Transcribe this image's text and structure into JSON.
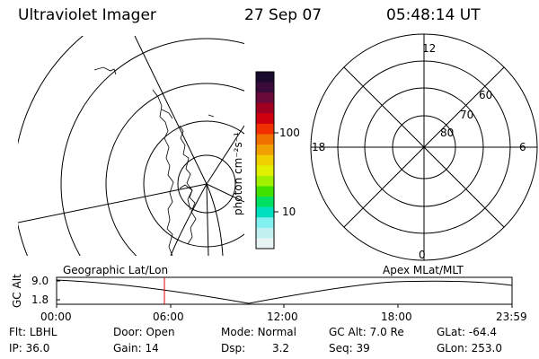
{
  "header": {
    "instrument": "Ultraviolet Imager",
    "date": "27 Sep 07",
    "time": "05:48:14 UT"
  },
  "colorbar": {
    "label": "photon cm⁻²s⁻¹",
    "ticks": [
      "100",
      "10"
    ],
    "colors": [
      "#1a0a2e",
      "#3a0a3a",
      "#6a0a3a",
      "#a00020",
      "#d00010",
      "#f03000",
      "#f07000",
      "#f0a000",
      "#f0d000",
      "#e0f000",
      "#a0f000",
      "#40e000",
      "#00e060",
      "#00e0c0",
      "#80f0f0",
      "#c0f0f0",
      "#e8f4f4"
    ]
  },
  "polar_plot": {
    "mlt_labels": [
      "12",
      "18",
      "6",
      "0"
    ],
    "lat_labels": [
      "60",
      "70",
      "80"
    ]
  },
  "timeline": {
    "left_label": "Geographic Lat/Lon",
    "right_label": "Apex MLat/MLT",
    "y_axis_label": "GC Alt",
    "y_ticks": [
      "9.0",
      "1.8"
    ],
    "x_ticks": [
      "00:00",
      "06:00",
      "12:00",
      "18:00",
      "23:59"
    ],
    "marker_color": "#e00000"
  },
  "info": {
    "flt_label": "Flt:",
    "flt_value": "LBHL",
    "door_label": "Door:",
    "door_value": "Open",
    "mode_label": "Mode:",
    "mode_value": "Normal",
    "gcalt_label": "GC Alt:",
    "gcalt_value": "7.0 Re",
    "glat_label": "GLat:",
    "glat_value": "-64.4",
    "ip_label": "IP:",
    "ip_value": "36.0",
    "gain_label": "Gain:",
    "gain_value": "14",
    "dsp_label": "Dsp:",
    "dsp_value": "3.2",
    "seq_label": "Seq:",
    "seq_value": "39",
    "glon_label": "GLon:",
    "glon_value": "253.0"
  }
}
